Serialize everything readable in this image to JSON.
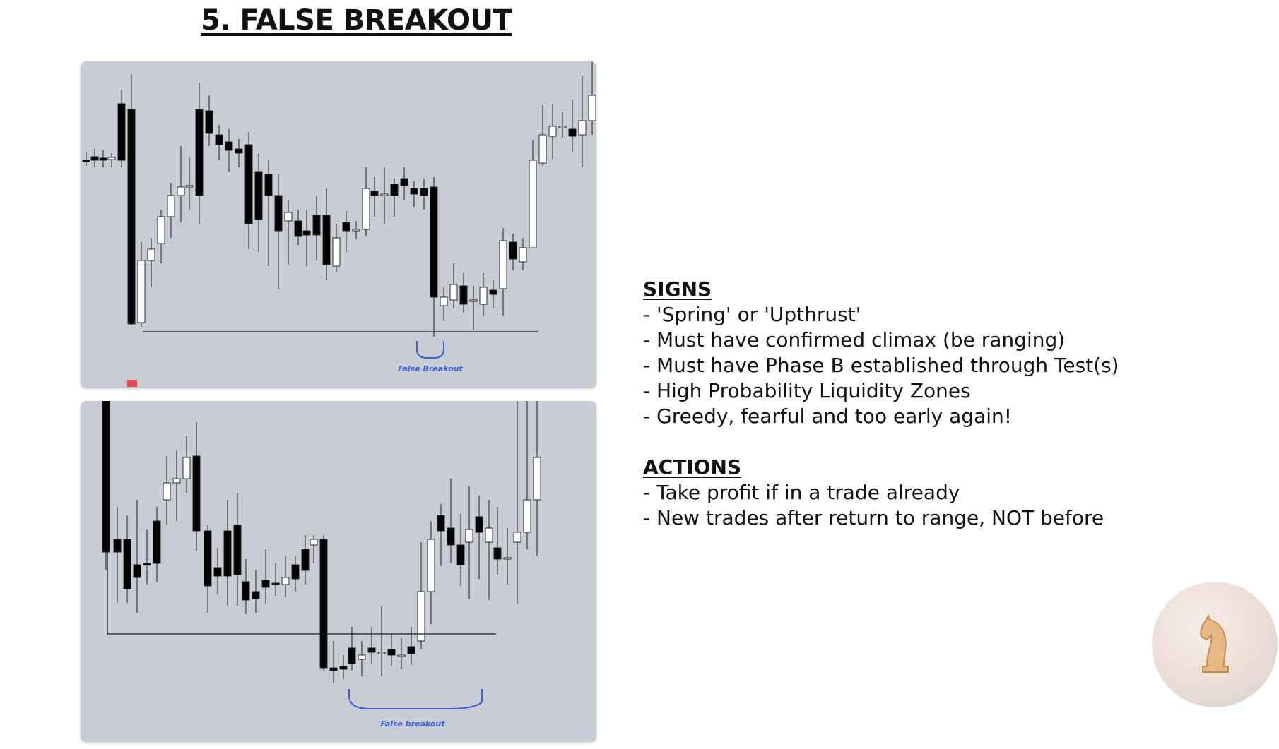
{
  "page": {
    "title": "5. FALSE BREAKOUT"
  },
  "charts": {
    "top": {
      "annotation": "False Breakout",
      "annotation_color": "#3a5fd8",
      "candle_bear_color": "#000000",
      "candle_bull_color": "#ffffff",
      "background": "#c8ccd4"
    },
    "bottom": {
      "annotation": "False breakout",
      "annotation_color": "#3a5fd8"
    }
  },
  "notes": {
    "signs_heading": "SIGNS",
    "signs": [
      "- 'Spring' or 'Upthrust'",
      "- Must have confirmed climax (be ranging)",
      "- Must have Phase B established through Test(s)",
      "- High Probability Liquidity Zones",
      "- Greedy, fearful and too early again!"
    ],
    "actions_heading": "ACTIONS",
    "actions": [
      "- Take profit if in a trade already",
      "- New trades after return to range, NOT before"
    ]
  },
  "logo": {
    "icon": "chess-knight-globe-logo"
  },
  "accents": {
    "red_marker": "#e8474b"
  }
}
